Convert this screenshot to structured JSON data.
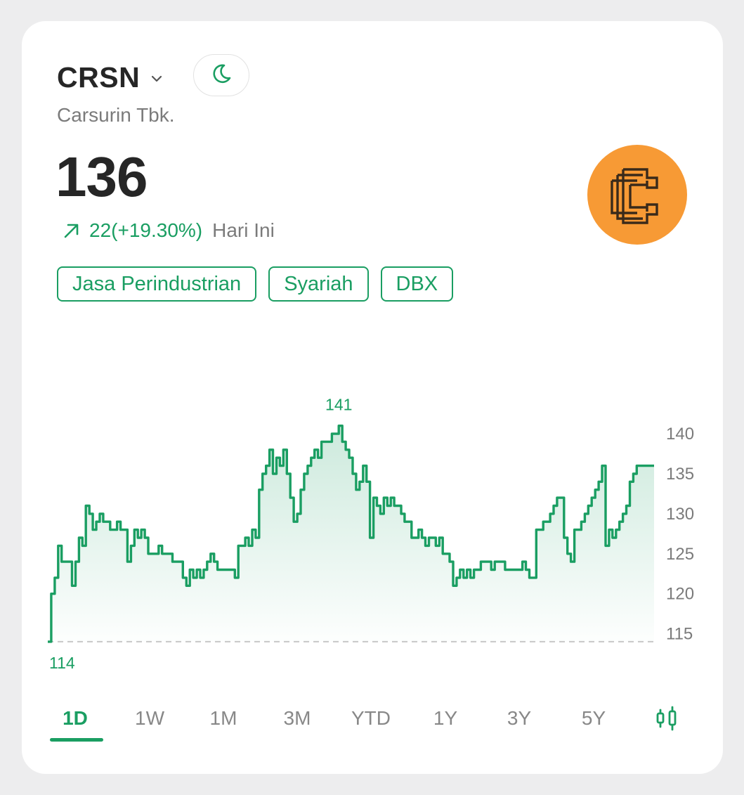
{
  "header": {
    "ticker": "CRSN",
    "company_name": "Carsurin Tbk.",
    "chevron_icon": "chevron-down-icon",
    "theme_icon": "moon-icon"
  },
  "quote": {
    "price": "136",
    "change": "22(+19.30%)",
    "period": "Hari Ini",
    "direction_icon": "arrow-up-right-icon"
  },
  "tags": [
    "Jasa Perindustrian",
    "Syariah",
    "DBX"
  ],
  "logo": {
    "icon": "carsurin-logo",
    "background": "#f79a35"
  },
  "colors": {
    "accent": "#1a9e62",
    "muted": "#7b7b7b",
    "text": "#262626"
  },
  "tabs": [
    {
      "label": "1D",
      "active": true
    },
    {
      "label": "1W",
      "active": false
    },
    {
      "label": "1M",
      "active": false
    },
    {
      "label": "3M",
      "active": false
    },
    {
      "label": "YTD",
      "active": false
    },
    {
      "label": "1Y",
      "active": false
    },
    {
      "label": "3Y",
      "active": false
    },
    {
      "label": "5Y",
      "active": false
    }
  ],
  "candle_icon": "candlestick-icon",
  "chart_data": {
    "type": "area",
    "high_label": "141",
    "low_label": "114",
    "baseline": 114,
    "ylim": [
      112.5,
      141.5
    ],
    "yticks": [
      "140",
      "135",
      "130",
      "125",
      "120",
      "115"
    ],
    "grid": false,
    "values": [
      114,
      120,
      122,
      126,
      124,
      124,
      124,
      121,
      124,
      127,
      126,
      131,
      130,
      128,
      129,
      130,
      129,
      129,
      128,
      128,
      129,
      128,
      128,
      124,
      126,
      128,
      127,
      128,
      127,
      125,
      125,
      125,
      126,
      125,
      125,
      125,
      124,
      124,
      124,
      122,
      121,
      123,
      122,
      123,
      122,
      123,
      124,
      125,
      124,
      123,
      123,
      123,
      123,
      123,
      122,
      126,
      126,
      127,
      126,
      128,
      127,
      133,
      135,
      136,
      138,
      135,
      137,
      136,
      138,
      135,
      132,
      129,
      130,
      133,
      135,
      136,
      137,
      138,
      137,
      139,
      139,
      139,
      140,
      140,
      141,
      139,
      138,
      137,
      135,
      133,
      134,
      136,
      134,
      127,
      132,
      131,
      130,
      132,
      131,
      132,
      131,
      131,
      130,
      129,
      129,
      127,
      127,
      128,
      127,
      126,
      127,
      127,
      126,
      127,
      125,
      125,
      124,
      121,
      122,
      123,
      122,
      123,
      122,
      123,
      123,
      124,
      124,
      124,
      123,
      124,
      124,
      124,
      123,
      123,
      123,
      123,
      123,
      124,
      123,
      122,
      122,
      128,
      128,
      129,
      129,
      130,
      131,
      132,
      132,
      127,
      125,
      124,
      128,
      128,
      129,
      130,
      131,
      132,
      133,
      134,
      136,
      126,
      128,
      127,
      128,
      129,
      130,
      131,
      134,
      135,
      136,
      136,
      136,
      136,
      136,
      136
    ]
  }
}
